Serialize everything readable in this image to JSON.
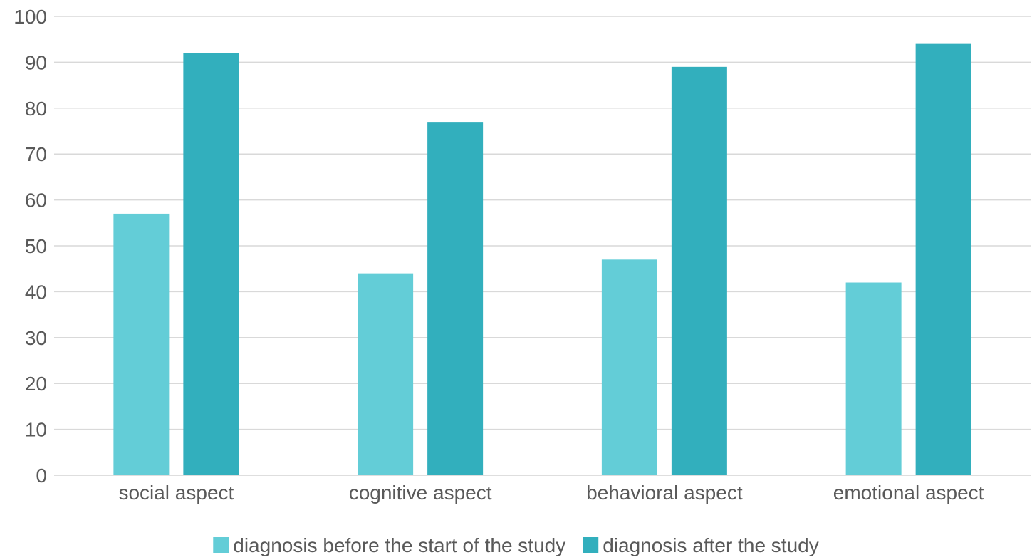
{
  "chart_data": {
    "type": "bar",
    "categories": [
      "social aspect",
      "cognitive aspect",
      "behavioral aspect",
      "emotional aspect"
    ],
    "series": [
      {
        "name": "diagnosis before the start of the study",
        "values": [
          57,
          44,
          47,
          42
        ],
        "color": "#63cdd7"
      },
      {
        "name": "diagnosis after the study",
        "values": [
          92,
          77,
          89,
          94
        ],
        "color": "#32afbd"
      }
    ],
    "ylim": [
      0,
      100
    ],
    "yticks": [
      0,
      10,
      20,
      30,
      40,
      50,
      60,
      70,
      80,
      90,
      100
    ],
    "grid": true,
    "legend": "bottom",
    "title": "",
    "xlabel": "",
    "ylabel": ""
  }
}
